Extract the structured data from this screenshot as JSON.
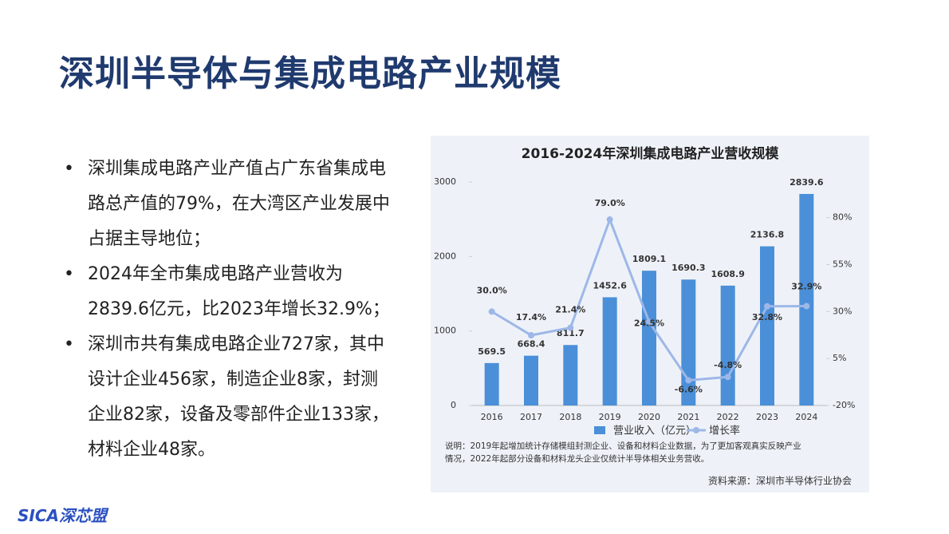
{
  "title": "深圳半导体与集成电路产业规模",
  "bullets": [
    "深圳集成电路产业产值占广东省集成电路总产值的79%，在大湾区产业发展中占据主导地位；",
    "2024年全市集成电路产业营收为2839.6亿元，比2023年增长32.9%；",
    "深圳市共有集成电路企业727家，其中设计企业456家，制造企业8家，封测企业82家，设备及零部件企业133家，材料企业48家。"
  ],
  "logo": "SICA深芯盟",
  "chart_data": {
    "type": "bar",
    "title": "2016-2024年深圳集成电路产业营收规模",
    "categories": [
      "2016",
      "2017",
      "2018",
      "2019",
      "2020",
      "2021",
      "2022",
      "2023",
      "2024"
    ],
    "series": [
      {
        "name": "营业收入（亿元）",
        "type": "bar",
        "color": "#4a8fd8",
        "values": [
          569.5,
          668.4,
          811.7,
          1452.6,
          1809.1,
          1690.3,
          1608.9,
          2136.8,
          2839.6
        ]
      },
      {
        "name": "增长率",
        "type": "line",
        "axis": "y2",
        "color": "#9db7e8",
        "values": [
          30.0,
          17.4,
          21.4,
          79.0,
          24.5,
          -6.6,
          -4.8,
          32.8,
          32.9
        ],
        "value_labels": [
          "30.0%",
          "17.4%",
          "21.4%",
          "79.0%",
          "24.5%",
          "-6.6%",
          "-4.8%",
          "32.8%",
          "32.9%"
        ]
      }
    ],
    "ylim": [
      0,
      3000
    ],
    "yticks": [
      0,
      1000,
      2000,
      3000
    ],
    "y2lim": [
      -20,
      99
    ],
    "y2ticks": [
      {
        "value": -20,
        "label": "-20%"
      },
      {
        "value": 5,
        "label": "5%"
      },
      {
        "value": 30,
        "label": "30%"
      },
      {
        "value": 55,
        "label": "55%"
      },
      {
        "value": 80,
        "label": "80%"
      }
    ],
    "note": [
      "说明：2019年起增加统计存储模组封测企业、设备和材料企业数据，为了更加客观真实反映产业",
      "情况，2022年起部分设备和材料龙头企业仅统计半导体相关业务营收。"
    ],
    "source": "资料来源：深圳市半导体行业协会"
  }
}
